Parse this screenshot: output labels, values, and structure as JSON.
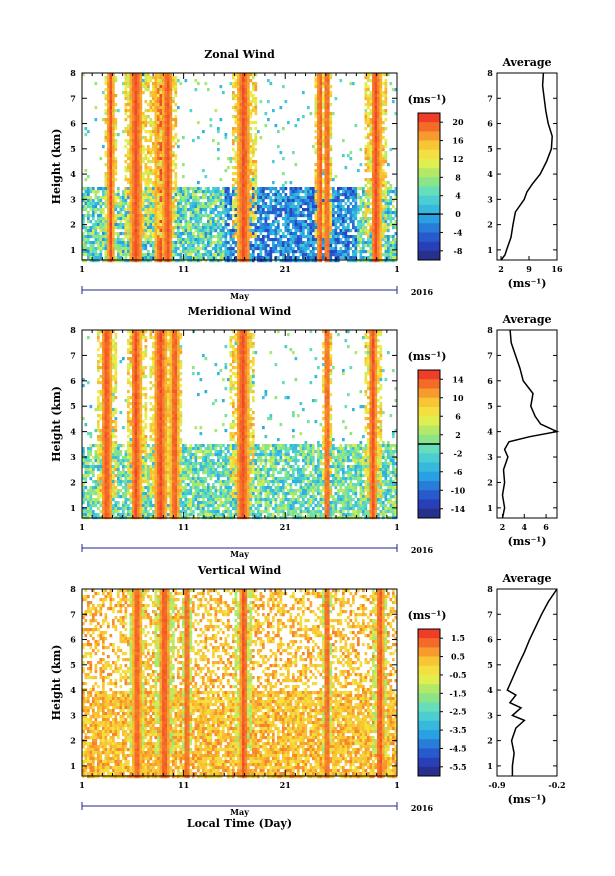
{
  "chart_data": [
    {
      "type": "heatmap",
      "title": "Zonal Wind",
      "ylabel": "Height (km)",
      "xlabel": "",
      "x_ticks": [
        "1",
        "11",
        "21",
        "1"
      ],
      "x_month_label": "May",
      "x_year_label": "2016",
      "x_range_days": [
        1,
        32
      ],
      "ylim": [
        0.6,
        8
      ],
      "y_ticks": [
        1,
        2,
        3,
        4,
        5,
        6,
        7,
        8
      ],
      "colorbar": {
        "unit": "(ms⁻¹)",
        "ticks": [
          20,
          16,
          12,
          8,
          4,
          0,
          -4,
          -8
        ],
        "range": [
          -10,
          22
        ],
        "line_at": 0
      },
      "bursts": [
        {
          "day": 3.7,
          "width": 0.3,
          "top": 8
        },
        {
          "day": 6.2,
          "width": 0.6,
          "top": 8
        },
        {
          "day": 8.6,
          "width": 0.5,
          "top": 8
        },
        {
          "day": 9.3,
          "width": 0.5,
          "top": 8
        },
        {
          "day": 16.8,
          "width": 0.6,
          "top": 8
        },
        {
          "day": 24.3,
          "width": 0.3,
          "top": 8
        },
        {
          "day": 25.0,
          "width": 0.3,
          "top": 8
        },
        {
          "day": 29.8,
          "width": 0.5,
          "top": 8
        }
      ],
      "average": {
        "title": "Average",
        "xlabel": "(ms⁻¹)",
        "x_ticks": [
          2,
          9,
          16
        ],
        "xlim": [
          1,
          16
        ],
        "height": [
          0.6,
          0.8,
          1.0,
          1.5,
          2.0,
          2.5,
          3.0,
          3.3,
          3.6,
          4.0,
          4.5,
          5.0,
          5.5,
          6.0,
          6.5,
          7.0,
          7.5,
          8.0
        ],
        "value": [
          2.0,
          3.0,
          3.4,
          4.5,
          5.0,
          5.6,
          7.8,
          8.5,
          9.8,
          11.8,
          13.4,
          14.6,
          14.8,
          13.8,
          13.2,
          12.8,
          12.4,
          12.6
        ]
      }
    },
    {
      "type": "heatmap",
      "title": "Meridional Wind",
      "ylabel": "Height (km)",
      "xlabel": "",
      "x_ticks": [
        "1",
        "11",
        "21",
        "1"
      ],
      "x_month_label": "May",
      "x_year_label": "2016",
      "x_range_days": [
        1,
        32
      ],
      "ylim": [
        0.6,
        8
      ],
      "y_ticks": [
        1,
        2,
        3,
        4,
        5,
        6,
        7,
        8
      ],
      "colorbar": {
        "unit": "(ms⁻¹)",
        "ticks": [
          14,
          10,
          6,
          2,
          -2,
          -6,
          -10,
          -14
        ],
        "range": [
          -16,
          16
        ],
        "line_at": 0
      },
      "bursts": [
        {
          "day": 3.3,
          "width": 0.5,
          "top": 8
        },
        {
          "day": 6.2,
          "width": 0.5,
          "top": 8
        },
        {
          "day": 8.6,
          "width": 0.6,
          "top": 8
        },
        {
          "day": 10.0,
          "width": 0.4,
          "top": 8
        },
        {
          "day": 16.7,
          "width": 0.6,
          "top": 8
        },
        {
          "day": 25.0,
          "width": 0.3,
          "top": 8
        },
        {
          "day": 29.5,
          "width": 0.4,
          "top": 8
        }
      ],
      "average": {
        "title": "Average",
        "xlabel": "(ms⁻¹)",
        "x_ticks": [
          2,
          4,
          6
        ],
        "xlim": [
          1.5,
          7
        ],
        "height": [
          0.6,
          1.0,
          1.5,
          2.0,
          2.5,
          3.0,
          3.3,
          3.6,
          3.8,
          4.0,
          4.3,
          4.6,
          5.0,
          5.5,
          6.0,
          6.5,
          7.0,
          7.5,
          8.0
        ],
        "value": [
          2.0,
          2.2,
          2.0,
          2.2,
          2.1,
          2.5,
          2.2,
          2.6,
          4.5,
          7.0,
          5.5,
          5.0,
          4.6,
          4.8,
          3.9,
          3.6,
          3.2,
          2.8,
          2.7
        ]
      }
    },
    {
      "type": "heatmap",
      "title": "Vertical Wind",
      "ylabel": "Height (km)",
      "xlabel": "Local Time (Day)",
      "x_ticks": [
        "1",
        "11",
        "21",
        "1"
      ],
      "x_month_label": "May",
      "x_year_label": "2016",
      "x_range_days": [
        1,
        32
      ],
      "ylim": [
        0.6,
        8
      ],
      "y_ticks": [
        1,
        2,
        3,
        4,
        5,
        6,
        7,
        8
      ],
      "colorbar": {
        "unit": "(ms⁻¹)",
        "ticks": [
          1.5,
          0.5,
          -0.5,
          -1.5,
          -2.5,
          -3.5,
          -4.5,
          -5.5
        ],
        "range": [
          -6,
          2
        ],
        "line_at": null
      },
      "bursts": [
        {
          "day": 6.3,
          "width": 0.4,
          "top": 8
        },
        {
          "day": 9.0,
          "width": 0.5,
          "top": 8
        },
        {
          "day": 11.2,
          "width": 0.3,
          "top": 8
        },
        {
          "day": 16.8,
          "width": 0.4,
          "top": 8
        },
        {
          "day": 25.0,
          "width": 0.3,
          "top": 8
        },
        {
          "day": 30.2,
          "width": 0.4,
          "top": 8
        }
      ],
      "average": {
        "title": "Average",
        "xlabel": "(ms⁻¹)",
        "x_ticks": [
          -0.9,
          -0.2
        ],
        "xlim": [
          -0.9,
          -0.2
        ],
        "height": [
          0.6,
          1.0,
          1.5,
          2.0,
          2.5,
          2.8,
          3.0,
          3.3,
          3.5,
          3.8,
          4.0,
          4.3,
          5.0,
          5.5,
          6.0,
          6.5,
          7.0,
          7.5,
          8.0
        ],
        "value": [
          -0.72,
          -0.72,
          -0.7,
          -0.73,
          -0.68,
          -0.58,
          -0.72,
          -0.62,
          -0.75,
          -0.68,
          -0.78,
          -0.74,
          -0.65,
          -0.58,
          -0.52,
          -0.45,
          -0.38,
          -0.3,
          -0.2
        ]
      }
    }
  ]
}
